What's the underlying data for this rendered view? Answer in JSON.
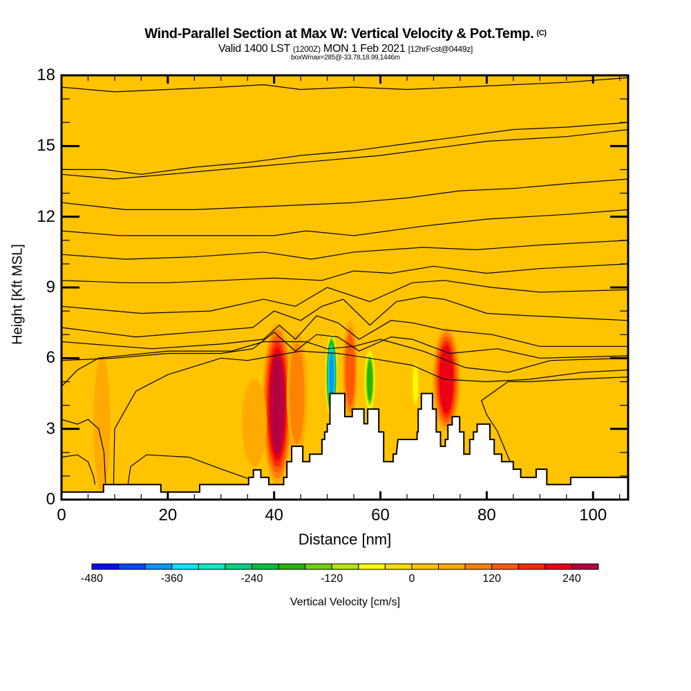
{
  "header": {
    "title": "Wind-Parallel Section at Max W: Vertical Velocity & Pot.Temp.",
    "copyright": "(C)",
    "valid_prefix": "Valid 1400 LST",
    "valid_utc": "(1200Z)",
    "valid_date": "MON 1 Feb 2021",
    "forecast": "[12hrFcst@0449z]",
    "box_info": "boxWmax=285@-33.78,18.99,1446m"
  },
  "chart_data": {
    "type": "heatmap",
    "title": "Wind-Parallel Section at Max W: Vertical Velocity & Pot.Temp.",
    "xlabel": "Distance [nm]",
    "ylabel": "Height [Kft MSL]",
    "xlim": [
      0,
      106.6
    ],
    "ylim": [
      0,
      18
    ],
    "x_ticks": [
      0,
      20,
      40,
      60,
      80,
      100
    ],
    "x_tick_labels": [
      "0",
      "20",
      "40",
      "60",
      "80",
      "100"
    ],
    "y_ticks": [
      0,
      3,
      6,
      9,
      12,
      15,
      18
    ],
    "y_tick_labels": [
      "0",
      "3",
      "6",
      "9",
      "12",
      "15",
      "18"
    ],
    "colorbar": {
      "label": "Vertical Velocity [cm/s]",
      "levels": [
        -480,
        -440,
        -400,
        -360,
        -320,
        -280,
        -240,
        -200,
        -160,
        -120,
        -80,
        -40,
        0,
        40,
        80,
        120,
        160,
        200,
        240,
        280
      ],
      "tick_values": [
        -480,
        -360,
        -240,
        -120,
        0,
        120,
        240
      ],
      "tick_labels": [
        "-480",
        "-360",
        "-240",
        "-120",
        "0",
        "120",
        "240"
      ],
      "colors": [
        "#0a0aff",
        "#0a46ff",
        "#0a96ff",
        "#00e6ff",
        "#00ecc8",
        "#00d282",
        "#00be3c",
        "#28b400",
        "#6ed200",
        "#b4e600",
        "#ffff00",
        "#ffdc00",
        "#ffc300",
        "#ffaa00",
        "#ff8200",
        "#ff5a00",
        "#ff2800",
        "#eb0014",
        "#b40041"
      ]
    },
    "background_value_cm_s": 10,
    "w_features": [
      {
        "name": "downdraft-core-40nm",
        "x": 40.6,
        "ybot": 0.8,
        "ytop": 7.3,
        "halfwidth": 2.2,
        "value": 260
      },
      {
        "name": "updraft-band-50nm",
        "x": 50.8,
        "ybot": 3.5,
        "ytop": 7.0,
        "halfwidth": 0.9,
        "value": -400
      },
      {
        "name": "updraft-band-58nm",
        "x": 58.0,
        "ybot": 3.8,
        "ytop": 6.3,
        "halfwidth": 0.8,
        "value": -200
      },
      {
        "name": "downdraft-core-72nm",
        "x": 72.4,
        "ybot": 3.0,
        "ytop": 7.2,
        "halfwidth": 2.0,
        "value": 200
      },
      {
        "name": "downdraft-54nm",
        "x": 54.3,
        "ybot": 3.5,
        "ytop": 7.5,
        "halfwidth": 1.1,
        "value": 120
      },
      {
        "name": "downdraft-44nm",
        "x": 44.3,
        "ybot": 2.0,
        "ytop": 7.0,
        "halfwidth": 1.5,
        "value": 100
      },
      {
        "name": "downdraft-36nm",
        "x": 36.3,
        "ybot": 1.5,
        "ytop": 5.0,
        "halfwidth": 1.8,
        "value": 50
      },
      {
        "name": "downdraft-7nm",
        "x": 7.6,
        "ybot": 0.5,
        "ytop": 6.0,
        "halfwidth": 1.2,
        "value": 50
      },
      {
        "name": "updraft-65nm",
        "x": 66.6,
        "ybot": 4.0,
        "ytop": 5.8,
        "halfwidth": 0.5,
        "value": -100
      }
    ],
    "terrain_profile_kft": [
      [
        0,
        0.32
      ],
      [
        7.9,
        0.32
      ],
      [
        7.9,
        0.64
      ],
      [
        18.7,
        0.64
      ],
      [
        18.7,
        0.32
      ],
      [
        26.0,
        0.32
      ],
      [
        26.0,
        0.64
      ],
      [
        35.2,
        0.64
      ],
      [
        35.2,
        0.94
      ],
      [
        36.1,
        0.94
      ],
      [
        36.1,
        1.26
      ],
      [
        37.5,
        1.26
      ],
      [
        37.5,
        0.94
      ],
      [
        39.0,
        0.94
      ],
      [
        39.0,
        0.64
      ],
      [
        41.8,
        0.64
      ],
      [
        41.8,
        0.94
      ],
      [
        42.4,
        0.94
      ],
      [
        42.4,
        1.61
      ],
      [
        43.3,
        1.61
      ],
      [
        43.3,
        2.26
      ],
      [
        45.4,
        2.26
      ],
      [
        45.4,
        1.61
      ],
      [
        46.7,
        1.61
      ],
      [
        46.7,
        1.93
      ],
      [
        49.0,
        1.93
      ],
      [
        49.0,
        2.55
      ],
      [
        49.5,
        2.55
      ],
      [
        49.5,
        2.87
      ],
      [
        50.0,
        2.87
      ],
      [
        50.0,
        3.2
      ],
      [
        50.5,
        3.2
      ],
      [
        50.5,
        4.5
      ],
      [
        53.3,
        4.5
      ],
      [
        53.3,
        3.52
      ],
      [
        54.7,
        3.52
      ],
      [
        54.7,
        3.84
      ],
      [
        56.9,
        3.84
      ],
      [
        56.9,
        3.22
      ],
      [
        57.6,
        3.22
      ],
      [
        57.6,
        3.84
      ],
      [
        59.7,
        3.84
      ],
      [
        59.7,
        2.87
      ],
      [
        60.6,
        2.87
      ],
      [
        60.6,
        1.61
      ],
      [
        62.4,
        1.61
      ],
      [
        62.4,
        1.93
      ],
      [
        63.0,
        1.93
      ],
      [
        63.3,
        2.55
      ],
      [
        66.9,
        2.55
      ],
      [
        66.9,
        2.87
      ],
      [
        67.1,
        2.87
      ],
      [
        67.1,
        3.84
      ],
      [
        67.7,
        3.84
      ],
      [
        67.7,
        4.5
      ],
      [
        69.8,
        4.5
      ],
      [
        69.8,
        3.84
      ],
      [
        70.5,
        3.84
      ],
      [
        70.5,
        2.87
      ],
      [
        71.3,
        2.87
      ],
      [
        71.3,
        2.26
      ],
      [
        72.2,
        2.26
      ],
      [
        72.2,
        2.55
      ],
      [
        72.7,
        2.55
      ],
      [
        72.7,
        3.17
      ],
      [
        73.5,
        3.17
      ],
      [
        73.5,
        3.52
      ],
      [
        74.9,
        3.52
      ],
      [
        74.9,
        2.87
      ],
      [
        75.7,
        2.87
      ],
      [
        75.7,
        1.93
      ],
      [
        76.8,
        1.93
      ],
      [
        76.8,
        2.55
      ],
      [
        77.5,
        2.55
      ],
      [
        77.5,
        2.87
      ],
      [
        78.2,
        2.87
      ],
      [
        78.2,
        3.2
      ],
      [
        80.6,
        3.2
      ],
      [
        80.6,
        2.55
      ],
      [
        81.4,
        2.55
      ],
      [
        81.4,
        1.93
      ],
      [
        82.8,
        1.93
      ],
      [
        82.8,
        1.61
      ],
      [
        85.0,
        1.61
      ],
      [
        85.0,
        1.29
      ],
      [
        86.4,
        1.29
      ],
      [
        86.4,
        0.94
      ],
      [
        89.3,
        0.94
      ],
      [
        89.3,
        1.29
      ],
      [
        91.3,
        1.29
      ],
      [
        91.3,
        0.64
      ],
      [
        95.8,
        0.64
      ],
      [
        95.8,
        0.94
      ],
      [
        106.6,
        0.94
      ]
    ],
    "theta_contours_kft": [
      [
        [
          0,
          17.5
        ],
        [
          10,
          17.3
        ],
        [
          20,
          17.4
        ],
        [
          30,
          17.5
        ],
        [
          38,
          17.6
        ],
        [
          45,
          17.4
        ],
        [
          55,
          17.5
        ],
        [
          65,
          17.4
        ],
        [
          75,
          17.5
        ],
        [
          85,
          17.6
        ],
        [
          95,
          17.7
        ],
        [
          106.6,
          17.9
        ]
      ],
      [
        [
          0,
          14.0
        ],
        [
          8,
          14.0
        ],
        [
          15,
          13.8
        ],
        [
          25,
          14.1
        ],
        [
          35,
          14.3
        ],
        [
          45,
          14.6
        ],
        [
          55,
          14.8
        ],
        [
          65,
          15.1
        ],
        [
          75,
          15.4
        ],
        [
          85,
          15.7
        ],
        [
          95,
          15.8
        ],
        [
          106.6,
          16.0
        ]
      ],
      [
        [
          0,
          13.8
        ],
        [
          10,
          13.6
        ],
        [
          20,
          13.8
        ],
        [
          35,
          14.1
        ],
        [
          45,
          14.3
        ],
        [
          60,
          14.6
        ],
        [
          70,
          14.9
        ],
        [
          80,
          15.2
        ],
        [
          95,
          15.4
        ],
        [
          106.6,
          15.7
        ]
      ],
      [
        [
          0,
          12.6
        ],
        [
          12,
          12.3
        ],
        [
          25,
          12.3
        ],
        [
          35,
          12.4
        ],
        [
          45,
          12.5
        ],
        [
          55,
          12.6
        ],
        [
          65,
          12.8
        ],
        [
          75,
          13.1
        ],
        [
          85,
          13.2
        ],
        [
          95,
          13.4
        ],
        [
          106.6,
          13.6
        ]
      ],
      [
        [
          0,
          11.4
        ],
        [
          11,
          11.2
        ],
        [
          25,
          11.2
        ],
        [
          40,
          11.2
        ],
        [
          46,
          11.4
        ],
        [
          55,
          11.2
        ],
        [
          68,
          11.6
        ],
        [
          80,
          11.9
        ],
        [
          95,
          12.1
        ],
        [
          106.6,
          12.3
        ]
      ],
      [
        [
          0,
          10.4
        ],
        [
          12,
          10.2
        ],
        [
          25,
          10.3
        ],
        [
          38,
          10.5
        ],
        [
          47,
          10.2
        ],
        [
          55,
          10.5
        ],
        [
          68,
          10.7
        ],
        [
          78,
          10.6
        ],
        [
          90,
          10.8
        ],
        [
          106.6,
          11.0
        ]
      ],
      [
        [
          0,
          9.3
        ],
        [
          12,
          9.2
        ],
        [
          20,
          9.2
        ],
        [
          30,
          9.3
        ],
        [
          40,
          9.4
        ],
        [
          49,
          9.3
        ],
        [
          55,
          9.7
        ],
        [
          62,
          9.6
        ],
        [
          70,
          9.9
        ],
        [
          80,
          9.6
        ],
        [
          90,
          9.8
        ],
        [
          106.6,
          10.0
        ]
      ],
      [
        [
          0,
          8.2
        ],
        [
          15,
          7.9
        ],
        [
          28,
          8.0
        ],
        [
          38,
          8.5
        ],
        [
          44,
          8.2
        ],
        [
          50,
          9.0
        ],
        [
          58,
          8.4
        ],
        [
          66,
          9.2
        ],
        [
          72,
          9.3
        ],
        [
          81,
          9.0
        ],
        [
          90,
          8.8
        ],
        [
          106.6,
          8.9
        ]
      ],
      [
        [
          0,
          7.3
        ],
        [
          14,
          6.9
        ],
        [
          25,
          7.1
        ],
        [
          36,
          7.3
        ],
        [
          40,
          8.0
        ],
        [
          45,
          7.6
        ],
        [
          49,
          8.2
        ],
        [
          53,
          8.5
        ],
        [
          58,
          7.4
        ],
        [
          63,
          8.4
        ],
        [
          68,
          8.6
        ],
        [
          72,
          8.5
        ],
        [
          80,
          7.9
        ],
        [
          88,
          7.8
        ],
        [
          106.6,
          7.6
        ]
      ],
      [
        [
          0,
          6.7
        ],
        [
          17,
          6.4
        ],
        [
          30,
          6.6
        ],
        [
          38,
          6.8
        ],
        [
          41,
          7.4
        ],
        [
          44,
          6.8
        ],
        [
          48,
          7.8
        ],
        [
          52,
          7.5
        ],
        [
          56,
          6.8
        ],
        [
          62,
          7.6
        ],
        [
          66,
          7.5
        ],
        [
          72,
          7.2
        ],
        [
          81,
          7.0
        ],
        [
          90,
          6.5
        ],
        [
          106.6,
          6.5
        ]
      ],
      [
        [
          0,
          5.9
        ],
        [
          10,
          6.0
        ],
        [
          20,
          6.2
        ],
        [
          30,
          6.2
        ],
        [
          36,
          6.4
        ],
        [
          40,
          7.1
        ],
        [
          44,
          6.3
        ],
        [
          48,
          7.0
        ],
        [
          52,
          6.9
        ],
        [
          56,
          6.3
        ],
        [
          62,
          6.9
        ],
        [
          66,
          6.8
        ],
        [
          73,
          6.2
        ],
        [
          82,
          6.4
        ],
        [
          90,
          6.0
        ],
        [
          106.6,
          6.1
        ]
      ],
      [
        [
          0,
          4.8
        ],
        [
          3,
          5.5
        ],
        [
          7,
          6.0
        ],
        [
          20,
          6.3
        ],
        [
          32,
          6.3
        ],
        [
          38,
          6.7
        ],
        [
          46,
          6.7
        ],
        [
          50,
          6.4
        ],
        [
          55,
          6.5
        ],
        [
          60,
          6.8
        ],
        [
          68,
          6.3
        ],
        [
          76,
          5.6
        ],
        [
          84,
          5.4
        ],
        [
          92,
          5.9
        ],
        [
          106.6,
          6.0
        ]
      ],
      [
        [
          9.8,
          0.64
        ],
        [
          10,
          3.0
        ],
        [
          14,
          4.6
        ],
        [
          20,
          5.3
        ],
        [
          30,
          6.0
        ],
        [
          35,
          5.9
        ],
        [
          40,
          6.1
        ],
        [
          45,
          6.3
        ],
        [
          52,
          6.2
        ],
        [
          58,
          6.0
        ],
        [
          66,
          5.7
        ],
        [
          72,
          5.1
        ],
        [
          80,
          5.0
        ],
        [
          88,
          5.1
        ],
        [
          98,
          5.4
        ],
        [
          106.6,
          5.5
        ]
      ],
      [
        [
          0,
          3.4
        ],
        [
          3,
          3.2
        ],
        [
          5,
          3.4
        ],
        [
          7,
          3.0
        ],
        [
          8,
          2.0
        ],
        [
          8.3,
          0.64
        ]
      ],
      [
        [
          0,
          1.8
        ],
        [
          3,
          1.9
        ],
        [
          5,
          1.6
        ],
        [
          6,
          1.0
        ],
        [
          6.3,
          0.64
        ]
      ],
      [
        [
          12.5,
          0.64
        ],
        [
          13,
          1.4
        ],
        [
          16,
          1.9
        ],
        [
          24,
          1.8
        ],
        [
          30,
          1.3
        ],
        [
          35,
          0.9
        ]
      ],
      [
        [
          85.0,
          1.29
        ],
        [
          82,
          2.9
        ],
        [
          80,
          3.6
        ],
        [
          79,
          4.2
        ],
        [
          84,
          5.0
        ],
        [
          88,
          5.0
        ],
        [
          96,
          5.1
        ],
        [
          106.6,
          5.2
        ]
      ]
    ]
  }
}
